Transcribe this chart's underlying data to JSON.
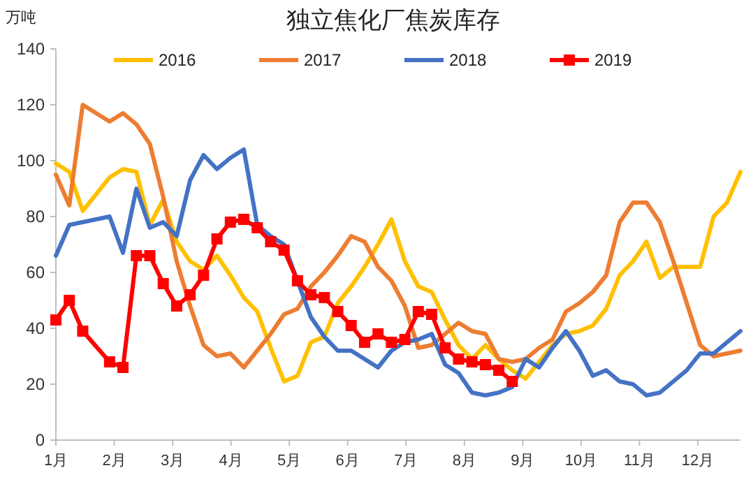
{
  "chart_data": {
    "type": "line",
    "title": "独立焦化厂焦炭库存",
    "ylabel": "万吨",
    "x": [
      1,
      1.23,
      1.46,
      1.69,
      1.92,
      2.15,
      2.38,
      2.61,
      2.84,
      3.07,
      3.3,
      3.53,
      3.76,
      3.99,
      4.22,
      4.45,
      4.68,
      4.91,
      5.14,
      5.37,
      5.6,
      5.83,
      6.06,
      6.29,
      6.52,
      6.75,
      6.98,
      7.21,
      7.44,
      7.67,
      7.9,
      8.13,
      8.36,
      8.59,
      8.82,
      9.05,
      9.28,
      9.51,
      9.74,
      9.97,
      10.2,
      10.43,
      10.66,
      10.89,
      11.12,
      11.35,
      11.58,
      11.81,
      12.04,
      12.27,
      12.5,
      12.73
    ],
    "xlim": [
      1,
      12.73
    ],
    "xticks": [
      {
        "value": 1,
        "label": "1月"
      },
      {
        "value": 2,
        "label": "2月"
      },
      {
        "value": 3,
        "label": "3月"
      },
      {
        "value": 4,
        "label": "4月"
      },
      {
        "value": 5,
        "label": "5月"
      },
      {
        "value": 6,
        "label": "6月"
      },
      {
        "value": 7,
        "label": "7月"
      },
      {
        "value": 8,
        "label": "8月"
      },
      {
        "value": 9,
        "label": "9月"
      },
      {
        "value": 10,
        "label": "10月"
      },
      {
        "value": 11,
        "label": "11月"
      },
      {
        "value": 12,
        "label": "12月"
      }
    ],
    "ylim": [
      0,
      140
    ],
    "yticks": [
      0,
      20,
      40,
      60,
      80,
      100,
      120,
      140
    ],
    "grid": false,
    "legend": "top",
    "marker": "none",
    "line_style": "solid",
    "series": [
      {
        "name": "2016",
        "color": "#ffc000",
        "values": [
          99,
          96,
          82,
          88,
          94,
          97,
          96,
          77,
          86,
          71,
          64,
          61,
          66,
          59,
          51,
          46,
          33,
          21,
          23,
          35,
          37,
          49,
          55,
          62,
          70,
          79,
          64,
          55,
          53,
          43,
          34,
          29,
          34,
          29,
          25,
          22,
          28,
          34,
          38,
          39,
          41,
          47,
          59,
          64,
          71,
          58,
          62,
          62,
          62,
          80,
          85,
          96
        ]
      },
      {
        "name": "2017",
        "color": "#ed7d31",
        "values": [
          95,
          84,
          120,
          117,
          114,
          117,
          113,
          106,
          87,
          64,
          48,
          34,
          30,
          31,
          26,
          32,
          38,
          45,
          47,
          55,
          60,
          66,
          73,
          71,
          62,
          57,
          48,
          33,
          34,
          38,
          42,
          39,
          38,
          29,
          28,
          29,
          33,
          36,
          46,
          49,
          53,
          59,
          78,
          85,
          85,
          78,
          64,
          49,
          34,
          30,
          31,
          32
        ]
      },
      {
        "name": "2018",
        "color": "#4472c4",
        "values": [
          66,
          77,
          78,
          79,
          80,
          67,
          90,
          76,
          78,
          73,
          93,
          102,
          97,
          101,
          104,
          77,
          73,
          70,
          57,
          44,
          37,
          32,
          32,
          29,
          26,
          32,
          35,
          36,
          38,
          27,
          24,
          17,
          16,
          17,
          19,
          29,
          26,
          33,
          39,
          32,
          23,
          25,
          21,
          20,
          16,
          17,
          21,
          25,
          31,
          31,
          35,
          39
        ]
      },
      {
        "name": "2019",
        "color": "#ff0000",
        "marker": "square",
        "x": [
          1,
          1.23,
          1.46,
          1.92,
          2.15,
          2.38,
          2.61,
          2.84,
          3.07,
          3.3,
          3.53,
          3.76,
          3.99,
          4.22,
          4.45,
          4.68,
          4.91,
          5.14,
          5.37,
          5.6,
          5.83,
          6.06,
          6.29,
          6.52,
          6.75,
          6.98,
          7.21,
          7.44,
          7.67,
          7.9,
          8.13,
          8.36,
          8.59,
          8.82
        ],
        "values": [
          43,
          50,
          39,
          28,
          26,
          66,
          66,
          56,
          48,
          52,
          59,
          72,
          78,
          79,
          76,
          71,
          68,
          57,
          52,
          51,
          46,
          41,
          35,
          38,
          35,
          36,
          46,
          45,
          33,
          29,
          28,
          27,
          25,
          21
        ]
      }
    ]
  }
}
